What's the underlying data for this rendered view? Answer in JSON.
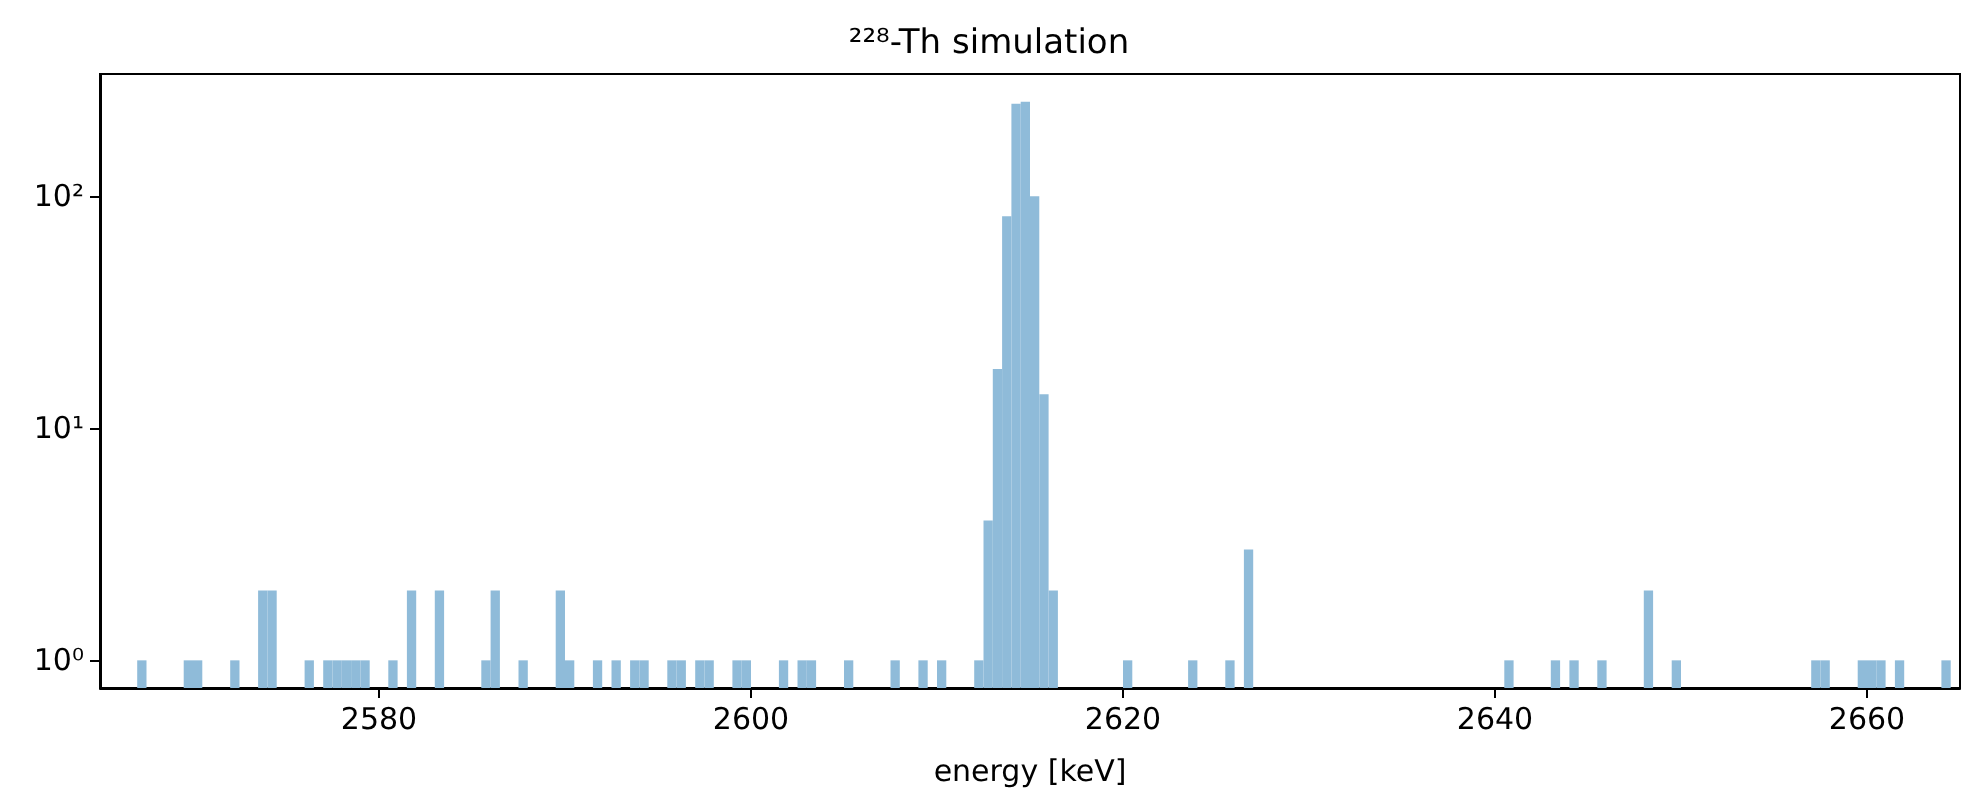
{
  "chart_data": {
    "type": "histogram",
    "title": "²²⁸-Th simulation",
    "xlabel": "energy [keV]",
    "color": "#8fbbd9",
    "log": "y",
    "grid": false,
    "xlim": [
      2565,
      2665
    ],
    "xticks": [
      2580,
      2600,
      2620,
      2640,
      2660
    ],
    "ylim": [
      0.76,
      336
    ],
    "yticks": [
      {
        "value": 1,
        "label": "10⁰"
      },
      {
        "value": 10,
        "label": "10¹"
      },
      {
        "value": 100,
        "label": "10²"
      }
    ],
    "bins": [
      2565,
      2565.5,
      2566,
      2566.5,
      2567,
      2567.5,
      2568,
      2568.5,
      2569,
      2569.5,
      2570,
      2570.5,
      2571,
      2571.5,
      2572,
      2572.5,
      2573,
      2573.5,
      2574,
      2574.5,
      2575,
      2575.5,
      2576,
      2576.5,
      2577,
      2577.5,
      2578,
      2578.5,
      2579,
      2579.5,
      2580,
      2580.5,
      2581,
      2581.5,
      2582,
      2582.5,
      2583,
      2583.5,
      2584,
      2584.5,
      2585,
      2585.5,
      2586,
      2586.5,
      2587,
      2587.5,
      2588,
      2588.5,
      2589,
      2589.5,
      2590,
      2590.5,
      2591,
      2591.5,
      2592,
      2592.5,
      2593,
      2593.5,
      2594,
      2594.5,
      2595,
      2595.5,
      2596,
      2596.5,
      2597,
      2597.5,
      2598,
      2598.5,
      2599,
      2599.5,
      2600,
      2600.5,
      2601,
      2601.5,
      2602,
      2602.5,
      2603,
      2603.5,
      2604,
      2604.5,
      2605,
      2605.5,
      2606,
      2606.5,
      2607,
      2607.5,
      2608,
      2608.5,
      2609,
      2609.5,
      2610,
      2610.5,
      2611,
      2611.5,
      2612,
      2612.5,
      2613,
      2613.5,
      2614,
      2614.5,
      2615,
      2615.5,
      2616,
      2616.5,
      2617,
      2617.5,
      2618,
      2618.5,
      2619,
      2619.5,
      2620,
      2620.5,
      2621,
      2621.5,
      2622,
      2622.5,
      2623,
      2623.5,
      2624,
      2624.5,
      2625,
      2625.5,
      2626,
      2626.5,
      2627,
      2627.5,
      2628,
      2628.5,
      2629,
      2629.5,
      2630,
      2630.5,
      2631,
      2631.5,
      2632,
      2632.5,
      2633,
      2633.5,
      2634,
      2634.5,
      2635,
      2635.5,
      2636,
      2636.5,
      2637,
      2637.5,
      2638,
      2638.5,
      2639,
      2639.5,
      2640,
      2640.5,
      2641,
      2641.5,
      2642,
      2642.5,
      2643,
      2643.5,
      2644,
      2644.5,
      2645,
      2645.5,
      2646,
      2646.5,
      2647,
      2647.5,
      2648,
      2648.5,
      2649,
      2649.5,
      2650,
      2650.5,
      2651,
      2651.5,
      2652,
      2652.5,
      2653,
      2653.5,
      2654,
      2654.5,
      2655,
      2655.5,
      2656,
      2656.5,
      2657,
      2657.5,
      2658,
      2658.5,
      2659,
      2659.5,
      2660,
      2660.5,
      2661,
      2661.5,
      2662,
      2662.5,
      2663,
      2663.5,
      2664,
      2664.5,
      2665
    ],
    "values": [
      null,
      null,
      null,
      null,
      1,
      null,
      null,
      null,
      null,
      1,
      1,
      null,
      null,
      null,
      1,
      null,
      null,
      2,
      2,
      null,
      null,
      null,
      1,
      null,
      1,
      1,
      1,
      1,
      1,
      null,
      null,
      1,
      null,
      2,
      null,
      null,
      2,
      null,
      null,
      null,
      null,
      1,
      2,
      null,
      null,
      1,
      null,
      null,
      null,
      2,
      1,
      null,
      null,
      1,
      null,
      1,
      null,
      1,
      1,
      null,
      null,
      1,
      1,
      null,
      1,
      1,
      null,
      null,
      1,
      1,
      null,
      null,
      null,
      1,
      null,
      1,
      1,
      null,
      null,
      null,
      1,
      null,
      null,
      null,
      null,
      1,
      null,
      null,
      1,
      null,
      1,
      null,
      null,
      null,
      1,
      4,
      18,
      82,
      250,
      255,
      100,
      14,
      2,
      null,
      null,
      null,
      null,
      null,
      null,
      null,
      1,
      null,
      null,
      null,
      null,
      null,
      null,
      1,
      null,
      null,
      null,
      1,
      null,
      3,
      null,
      null,
      null,
      null,
      null,
      null,
      null,
      null,
      null,
      null,
      null,
      null,
      null,
      null,
      null,
      null,
      null,
      null,
      null,
      null,
      null,
      null,
      null,
      null,
      null,
      null,
      null,
      1,
      null,
      null,
      null,
      null,
      1,
      null,
      1,
      null,
      null,
      1,
      null,
      null,
      null,
      null,
      2,
      null,
      null,
      1,
      null,
      null,
      null,
      null,
      null,
      null,
      null,
      null,
      null,
      null,
      null,
      null,
      null,
      null,
      1,
      1,
      null,
      null,
      null,
      1,
      1,
      1,
      null,
      1,
      null,
      null,
      null,
      null,
      1,
      null
    ]
  }
}
